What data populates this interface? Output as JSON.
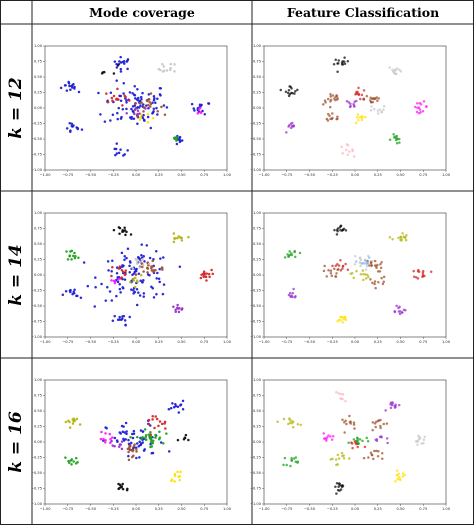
{
  "columns": [
    {
      "title": "Mode coverage"
    },
    {
      "title": "Feature Classification"
    }
  ],
  "row_labels": [
    "k = 12",
    "k = 14",
    "k = 16"
  ],
  "axis_ticks": [
    "−1.00",
    "−0.75",
    "−0.50",
    "−0.25",
    "0.00",
    "0.25",
    "0.50",
    "0.75",
    "1.00"
  ],
  "colors": {
    "blue": "#1f1fd6",
    "black": "#111111",
    "gray": "#c8c8c8",
    "red": "#d62728",
    "sienna": "#a0522d",
    "purple": "#9932cc",
    "magenta": "#ff1aff",
    "green": "#1fa21f",
    "olive": "#b5b512",
    "yellow": "#ffe100",
    "orange": "#ff9a00",
    "pink": "#ffb6c1",
    "lightblue": "#7fb8ff"
  },
  "chart_data": [
    {
      "type": "scatter",
      "row": "k = 12",
      "column": "Mode coverage",
      "xlim": [
        -1,
        1
      ],
      "ylim": [
        -1,
        1
      ],
      "clusters": [
        {
          "color": "blue",
          "x": -0.72,
          "y": 0.35,
          "n": 14,
          "s": 0.05
        },
        {
          "color": "blue",
          "x": -0.15,
          "y": 0.72,
          "n": 16,
          "s": 0.05
        },
        {
          "color": "gray",
          "x": 0.35,
          "y": 0.63,
          "n": 12,
          "s": 0.05
        },
        {
          "color": "blue",
          "x": 0.72,
          "y": 0.0,
          "n": 14,
          "s": 0.05
        },
        {
          "color": "blue",
          "x": 0.45,
          "y": -0.52,
          "n": 10,
          "s": 0.04
        },
        {
          "color": "blue",
          "x": -0.18,
          "y": -0.7,
          "n": 10,
          "s": 0.05
        },
        {
          "color": "blue",
          "x": -0.7,
          "y": -0.32,
          "n": 12,
          "s": 0.05
        },
        {
          "color": "blue",
          "x": 0.0,
          "y": 0.05,
          "n": 90,
          "s": 0.18
        },
        {
          "color": "sienna",
          "x": 0.1,
          "y": 0.05,
          "n": 20,
          "s": 0.08
        },
        {
          "color": "red",
          "x": -0.2,
          "y": 0.15,
          "n": 14,
          "s": 0.07
        },
        {
          "color": "purple",
          "x": 0.0,
          "y": -0.05,
          "n": 8,
          "s": 0.05
        },
        {
          "color": "yellow",
          "x": 0.05,
          "y": -0.15,
          "n": 6,
          "s": 0.05
        },
        {
          "color": "green",
          "x": 0.45,
          "y": -0.5,
          "n": 6,
          "s": 0.03
        },
        {
          "color": "magenta",
          "x": 0.7,
          "y": -0.05,
          "n": 5,
          "s": 0.03
        },
        {
          "color": "black",
          "x": -0.3,
          "y": 0.6,
          "n": 5,
          "s": 0.05
        }
      ]
    },
    {
      "type": "scatter",
      "row": "k = 12",
      "column": "Feature Classification",
      "xlim": [
        -1,
        1
      ],
      "ylim": [
        -1,
        1
      ],
      "clusters": [
        {
          "color": "black",
          "x": -0.7,
          "y": 0.28,
          "n": 14,
          "s": 0.04
        },
        {
          "color": "black",
          "x": -0.15,
          "y": 0.72,
          "n": 14,
          "s": 0.04
        },
        {
          "color": "gray",
          "x": 0.45,
          "y": 0.6,
          "n": 12,
          "s": 0.04
        },
        {
          "color": "magenta",
          "x": 0.72,
          "y": 0.02,
          "n": 14,
          "s": 0.04
        },
        {
          "color": "green",
          "x": 0.45,
          "y": -0.5,
          "n": 12,
          "s": 0.04
        },
        {
          "color": "pink",
          "x": -0.1,
          "y": -0.68,
          "n": 10,
          "s": 0.04
        },
        {
          "color": "purple",
          "x": -0.7,
          "y": -0.32,
          "n": 10,
          "s": 0.04
        },
        {
          "color": "sienna",
          "x": -0.25,
          "y": 0.15,
          "n": 16,
          "s": 0.05
        },
        {
          "color": "sienna",
          "x": 0.2,
          "y": 0.15,
          "n": 16,
          "s": 0.05
        },
        {
          "color": "sienna",
          "x": -0.25,
          "y": -0.15,
          "n": 12,
          "s": 0.05
        },
        {
          "color": "red",
          "x": 0.05,
          "y": 0.22,
          "n": 12,
          "s": 0.05
        },
        {
          "color": "purple",
          "x": -0.05,
          "y": 0.05,
          "n": 10,
          "s": 0.04
        },
        {
          "color": "yellow",
          "x": 0.05,
          "y": -0.18,
          "n": 10,
          "s": 0.04
        },
        {
          "color": "gray",
          "x": 0.25,
          "y": -0.05,
          "n": 10,
          "s": 0.05
        }
      ]
    },
    {
      "type": "scatter",
      "row": "k = 14",
      "column": "Mode coverage",
      "xlim": [
        -1,
        1
      ],
      "ylim": [
        -1,
        1
      ],
      "clusters": [
        {
          "color": "blue",
          "x": 0.0,
          "y": 0.0,
          "n": 110,
          "s": 0.2
        },
        {
          "color": "black",
          "x": -0.15,
          "y": 0.72,
          "n": 12,
          "s": 0.04
        },
        {
          "color": "olive",
          "x": 0.45,
          "y": 0.58,
          "n": 12,
          "s": 0.04
        },
        {
          "color": "green",
          "x": -0.7,
          "y": 0.32,
          "n": 12,
          "s": 0.04
        },
        {
          "color": "red",
          "x": 0.75,
          "y": 0.0,
          "n": 16,
          "s": 0.04
        },
        {
          "color": "purple",
          "x": 0.45,
          "y": -0.55,
          "n": 10,
          "s": 0.04
        },
        {
          "color": "blue",
          "x": -0.7,
          "y": -0.32,
          "n": 12,
          "s": 0.05
        },
        {
          "color": "blue",
          "x": -0.15,
          "y": -0.72,
          "n": 12,
          "s": 0.05
        },
        {
          "color": "sienna",
          "x": 0.15,
          "y": 0.12,
          "n": 22,
          "s": 0.08
        },
        {
          "color": "red",
          "x": -0.15,
          "y": 0.05,
          "n": 12,
          "s": 0.07
        },
        {
          "color": "gray",
          "x": 0.05,
          "y": 0.2,
          "n": 10,
          "s": 0.06
        },
        {
          "color": "olive",
          "x": 0.0,
          "y": -0.05,
          "n": 8,
          "s": 0.05
        },
        {
          "color": "magenta",
          "x": -0.25,
          "y": -0.1,
          "n": 5,
          "s": 0.04
        }
      ]
    },
    {
      "type": "scatter",
      "row": "k = 14",
      "column": "Feature Classification",
      "xlim": [
        -1,
        1
      ],
      "ylim": [
        -1,
        1
      ],
      "clusters": [
        {
          "color": "black",
          "x": -0.15,
          "y": 0.72,
          "n": 14,
          "s": 0.04
        },
        {
          "color": "olive",
          "x": 0.5,
          "y": 0.6,
          "n": 14,
          "s": 0.04
        },
        {
          "color": "green",
          "x": -0.7,
          "y": 0.35,
          "n": 12,
          "s": 0.04
        },
        {
          "color": "red",
          "x": 0.75,
          "y": 0.02,
          "n": 14,
          "s": 0.04
        },
        {
          "color": "purple",
          "x": 0.48,
          "y": -0.55,
          "n": 12,
          "s": 0.04
        },
        {
          "color": "yellow",
          "x": -0.15,
          "y": -0.72,
          "n": 12,
          "s": 0.04
        },
        {
          "color": "purple",
          "x": -0.7,
          "y": -0.32,
          "n": 10,
          "s": 0.04
        },
        {
          "color": "gray",
          "x": 0.05,
          "y": 0.2,
          "n": 16,
          "s": 0.06
        },
        {
          "color": "sienna",
          "x": 0.2,
          "y": 0.15,
          "n": 16,
          "s": 0.05
        },
        {
          "color": "sienna",
          "x": -0.25,
          "y": 0.05,
          "n": 14,
          "s": 0.05
        },
        {
          "color": "red",
          "x": -0.15,
          "y": 0.15,
          "n": 10,
          "s": 0.05
        },
        {
          "color": "olive",
          "x": 0.05,
          "y": 0.0,
          "n": 12,
          "s": 0.05
        },
        {
          "color": "sienna",
          "x": 0.25,
          "y": -0.1,
          "n": 10,
          "s": 0.05
        },
        {
          "color": "lightblue",
          "x": 0.1,
          "y": 0.2,
          "n": 8,
          "s": 0.04
        }
      ]
    },
    {
      "type": "scatter",
      "row": "k = 16",
      "column": "Mode coverage",
      "xlim": [
        -1,
        1
      ],
      "ylim": [
        -1,
        1
      ],
      "clusters": [
        {
          "color": "blue",
          "x": 0.0,
          "y": 0.0,
          "n": 60,
          "s": 0.16
        },
        {
          "color": "black",
          "x": -0.15,
          "y": -0.72,
          "n": 12,
          "s": 0.04
        },
        {
          "color": "blue",
          "x": 0.45,
          "y": 0.58,
          "n": 12,
          "s": 0.04
        },
        {
          "color": "olive",
          "x": -0.7,
          "y": 0.32,
          "n": 12,
          "s": 0.04
        },
        {
          "color": "green",
          "x": -0.7,
          "y": -0.3,
          "n": 10,
          "s": 0.04
        },
        {
          "color": "yellow",
          "x": 0.45,
          "y": -0.55,
          "n": 10,
          "s": 0.04
        },
        {
          "color": "green",
          "x": 0.15,
          "y": 0.05,
          "n": 30,
          "s": 0.07
        },
        {
          "color": "sienna",
          "x": -0.05,
          "y": -0.1,
          "n": 16,
          "s": 0.06
        },
        {
          "color": "magenta",
          "x": -0.3,
          "y": 0.05,
          "n": 10,
          "s": 0.05
        },
        {
          "color": "red",
          "x": 0.2,
          "y": 0.3,
          "n": 14,
          "s": 0.07
        },
        {
          "color": "purple",
          "x": -0.2,
          "y": -0.05,
          "n": 8,
          "s": 0.04
        },
        {
          "color": "black",
          "x": 0.55,
          "y": 0.05,
          "n": 6,
          "s": 0.04
        }
      ]
    },
    {
      "type": "scatter",
      "row": "k = 16",
      "column": "Feature Classification",
      "xlim": [
        -1,
        1
      ],
      "ylim": [
        -1,
        1
      ],
      "clusters": [
        {
          "color": "black",
          "x": -0.15,
          "y": -0.72,
          "n": 14,
          "s": 0.04
        },
        {
          "color": "pink",
          "x": -0.15,
          "y": 0.72,
          "n": 8,
          "s": 0.04
        },
        {
          "color": "purple",
          "x": 0.45,
          "y": 0.58,
          "n": 12,
          "s": 0.04
        },
        {
          "color": "olive",
          "x": -0.7,
          "y": 0.32,
          "n": 12,
          "s": 0.04
        },
        {
          "color": "green",
          "x": -0.7,
          "y": -0.3,
          "n": 12,
          "s": 0.04
        },
        {
          "color": "yellow",
          "x": 0.48,
          "y": -0.55,
          "n": 12,
          "s": 0.04
        },
        {
          "color": "gray",
          "x": 0.72,
          "y": 0.02,
          "n": 12,
          "s": 0.04
        },
        {
          "color": "sienna",
          "x": -0.05,
          "y": 0.3,
          "n": 12,
          "s": 0.05
        },
        {
          "color": "sienna",
          "x": 0.25,
          "y": 0.3,
          "n": 12,
          "s": 0.05
        },
        {
          "color": "green",
          "x": 0.05,
          "y": 0.0,
          "n": 16,
          "s": 0.05
        },
        {
          "color": "olive",
          "x": -0.2,
          "y": -0.25,
          "n": 12,
          "s": 0.05
        },
        {
          "color": "sienna",
          "x": 0.2,
          "y": -0.2,
          "n": 12,
          "s": 0.05
        },
        {
          "color": "magenta",
          "x": -0.3,
          "y": 0.05,
          "n": 10,
          "s": 0.04
        },
        {
          "color": "purple",
          "x": 0.3,
          "y": 0.05,
          "n": 8,
          "s": 0.04
        },
        {
          "color": "red",
          "x": 0.0,
          "y": -0.05,
          "n": 8,
          "s": 0.04
        }
      ]
    }
  ]
}
